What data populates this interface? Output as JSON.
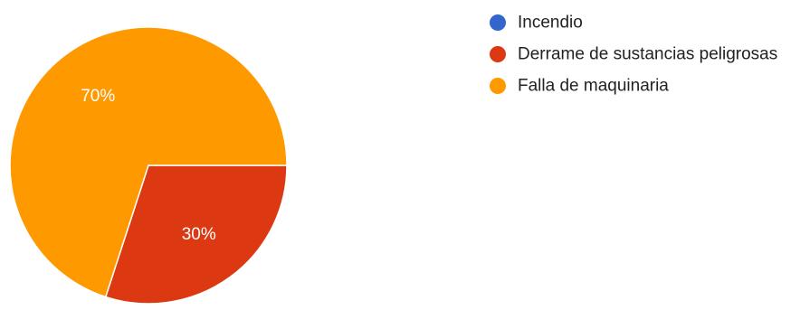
{
  "chart_data": {
    "type": "pie",
    "start_angle_deg": 90,
    "direction": "clockwise",
    "slices": [
      {
        "label": "Incendio",
        "value": 0,
        "display": "",
        "color": "#3366cc"
      },
      {
        "label": "Derrame de sustancias peligrosas",
        "value": 30,
        "display": "30%",
        "color": "#dc3912"
      },
      {
        "label": "Falla de maquinaria",
        "value": 70,
        "display": "70%",
        "color": "#ff9900"
      }
    ],
    "legend": {
      "position": "right",
      "items": [
        "Incendio",
        "Derrame de sustancias peligrosas",
        "Falla de maquinaria"
      ]
    }
  }
}
